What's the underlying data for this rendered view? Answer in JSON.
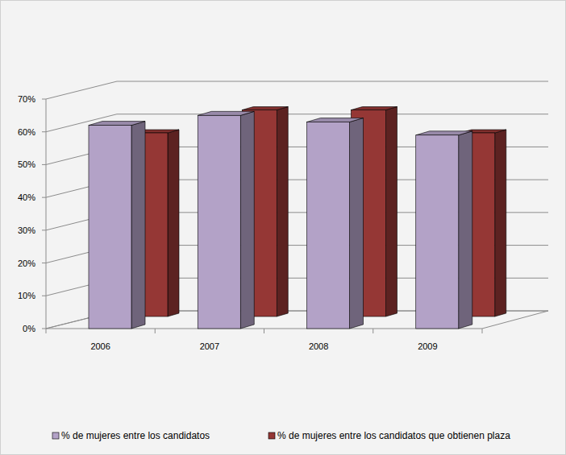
{
  "chart_data": {
    "type": "bar",
    "categories": [
      "2006",
      "2007",
      "2008",
      "2009"
    ],
    "series": [
      {
        "name": "% de mujeres entre los candidatos",
        "color": "#b3a2c7",
        "values": [
          62,
          65,
          63,
          59
        ]
      },
      {
        "name": "% de mujeres entre los candidatos que obtienen plaza",
        "color": "#953735",
        "values": [
          56,
          63,
          63,
          56
        ]
      }
    ],
    "ylim": [
      0,
      70
    ],
    "yticks": [
      {
        "value": 0,
        "label": "0%"
      },
      {
        "value": 10,
        "label": "10%"
      },
      {
        "value": 20,
        "label": "20%"
      },
      {
        "value": 30,
        "label": "30%"
      },
      {
        "value": 40,
        "label": "40%"
      },
      {
        "value": 50,
        "label": "50%"
      },
      {
        "value": 60,
        "label": "60%"
      },
      {
        "value": 70,
        "label": "70%"
      }
    ],
    "grid": true,
    "legend": "bottom"
  }
}
